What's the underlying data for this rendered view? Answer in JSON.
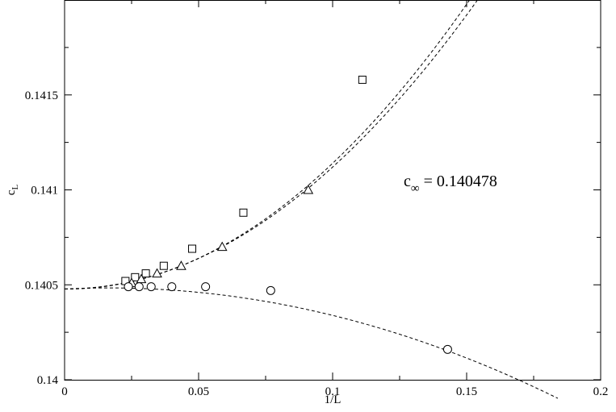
{
  "chart_data": {
    "type": "scatter",
    "title": "",
    "xlabel": "1/L",
    "ylabel_main": "c",
    "ylabel_sub": "L",
    "xlim": [
      0,
      0.2
    ],
    "ylim": [
      0.14,
      0.142
    ],
    "grid": false,
    "x_ticks": [
      0,
      0.05,
      0.1,
      0.15,
      0.2
    ],
    "x_tick_labels": [
      "0",
      "0.05",
      "0.1",
      "0.15",
      "0.2"
    ],
    "y_ticks": [
      0.14,
      0.1405,
      0.141,
      0.1415
    ],
    "y_tick_labels": [
      "0.14",
      "0.1405",
      "0.141",
      "0.1415"
    ],
    "annotation": {
      "main": "c",
      "sub": "∞",
      "value": " = 0.140478",
      "x": 0.1265,
      "y": 0.14102
    },
    "series": [
      {
        "marker": "square",
        "x": [
          0.0227,
          0.0263,
          0.0303,
          0.037,
          0.0476,
          0.0667,
          0.1111
        ],
        "y": [
          0.14052,
          0.14054,
          0.14056,
          0.1406,
          0.14069,
          0.14088,
          0.14158
        ],
        "fit": {
          "a": 0.140478,
          "b": -0.00014,
          "c": 0.0676
        }
      },
      {
        "marker": "triangle",
        "x": [
          0.025,
          0.0286,
          0.0345,
          0.0435,
          0.0588,
          0.0909
        ],
        "y": [
          0.14051,
          0.14053,
          0.14056,
          0.1406,
          0.1407,
          0.141
        ],
        "fit": {
          "a": 0.140478,
          "b": 2e-05,
          "c": 0.064
        }
      },
      {
        "marker": "circle",
        "x": [
          0.0238,
          0.0278,
          0.0323,
          0.04,
          0.0526,
          0.0769,
          0.1429
        ],
        "y": [
          0.14049,
          0.14049,
          0.14049,
          0.14049,
          0.14049,
          0.14047,
          0.14016
        ],
        "fit": {
          "a": 0.140478,
          "b": 0.00068,
          "c": -0.0207
        }
      }
    ]
  }
}
